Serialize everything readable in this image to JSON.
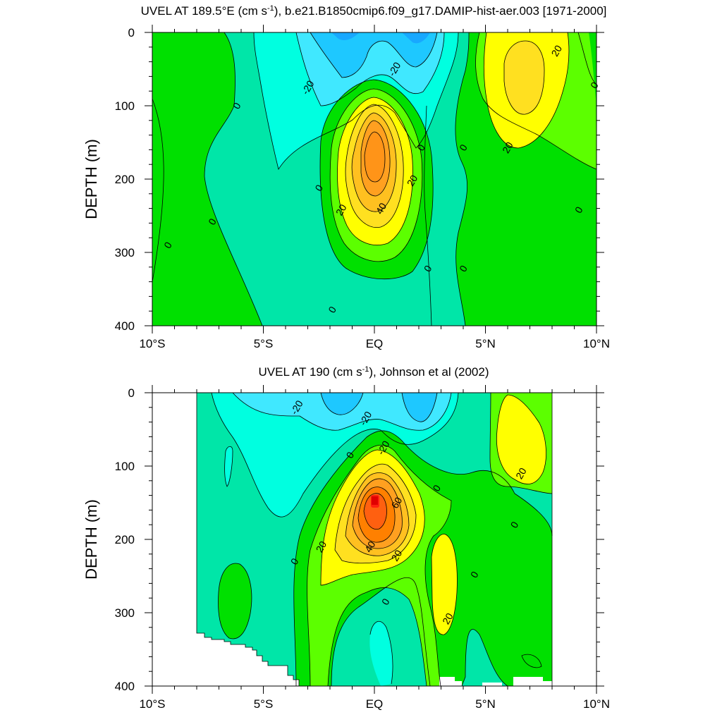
{
  "chart_data": [
    {
      "type": "contour",
      "title_text": "UVEL AT 189.5°E (cm s",
      "title_sup": "-1",
      "title_rest": "), b.e21.B1850cmip6.f09_g17.DAMIP-hist-aer.003 [1971-2000]",
      "ylabel": "DEPTH (m)",
      "x_ticks": [
        "10°S",
        "5°S",
        "EQ",
        "5°N",
        "10°N"
      ],
      "x_values": [
        -10,
        -5,
        0,
        5,
        10
      ],
      "y_ticks": [
        "0",
        "100",
        "200",
        "300",
        "400"
      ],
      "y_values": [
        0,
        100,
        200,
        300,
        400
      ],
      "xlim": [
        -10,
        10
      ],
      "ylim": [
        0,
        400
      ],
      "contour_interval": 10,
      "contour_labels": [
        {
          "text": "-20",
          "lat": -3.0,
          "depth": 75
        },
        {
          "text": "-20",
          "lat": 0.9,
          "depth": 50
        },
        {
          "text": "0",
          "lat": -6.2,
          "depth": 100
        },
        {
          "text": "0",
          "lat": -9.3,
          "depth": 290
        },
        {
          "text": "0",
          "lat": -7.3,
          "depth": 258
        },
        {
          "text": "0",
          "lat": -2.5,
          "depth": 212
        },
        {
          "text": "0",
          "lat": 2.1,
          "depth": 157
        },
        {
          "text": "0",
          "lat": 4.0,
          "depth": 157
        },
        {
          "text": "0",
          "lat": 2.4,
          "depth": 322
        },
        {
          "text": "0",
          "lat": 4.0,
          "depth": 322
        },
        {
          "text": "0",
          "lat": -1.9,
          "depth": 378
        },
        {
          "text": "0",
          "lat": 9.9,
          "depth": 72
        },
        {
          "text": "0",
          "lat": 9.2,
          "depth": 242
        },
        {
          "text": "20",
          "lat": 1.7,
          "depth": 202
        },
        {
          "text": "20",
          "lat": -1.5,
          "depth": 242
        },
        {
          "text": "20",
          "lat": 6.0,
          "depth": 157
        },
        {
          "text": "20",
          "lat": 8.2,
          "depth": 25
        },
        {
          "text": "40",
          "lat": 0.3,
          "depth": 240
        }
      ]
    },
    {
      "type": "contour",
      "title_text": "UVEL AT 190 (cm s",
      "title_sup": "-1",
      "title_rest": "), Johnson et al (2002)",
      "ylabel": "DEPTH (m)",
      "x_ticks": [
        "10°S",
        "5°S",
        "EQ",
        "5°N",
        "10°N"
      ],
      "x_values": [
        -10,
        -5,
        0,
        5,
        10
      ],
      "y_ticks": [
        "0",
        "100",
        "200",
        "300",
        "400"
      ],
      "y_values": [
        0,
        100,
        200,
        300,
        400
      ],
      "xlim": [
        -10,
        10
      ],
      "ylim": [
        0,
        400
      ],
      "contour_interval": 10,
      "data_lat_range": [
        -8,
        8
      ],
      "contour_labels": [
        {
          "text": "-20",
          "lat": -3.5,
          "depth": 20
        },
        {
          "text": "-20",
          "lat": -0.4,
          "depth": 35
        },
        {
          "text": "-20",
          "lat": 0.4,
          "depth": 75
        },
        {
          "text": "0",
          "lat": -1.1,
          "depth": 85
        },
        {
          "text": "0",
          "lat": 2.8,
          "depth": 130
        },
        {
          "text": "0",
          "lat": 6.3,
          "depth": 180
        },
        {
          "text": "0",
          "lat": -3.6,
          "depth": 230
        },
        {
          "text": "0",
          "lat": 4.5,
          "depth": 248
        },
        {
          "text": "0",
          "lat": 0.5,
          "depth": 285
        },
        {
          "text": "20",
          "lat": -2.4,
          "depth": 210
        },
        {
          "text": "20",
          "lat": 1.0,
          "depth": 222
        },
        {
          "text": "20",
          "lat": 3.3,
          "depth": 308
        },
        {
          "text": "20",
          "lat": 6.6,
          "depth": 110
        },
        {
          "text": "40",
          "lat": -0.2,
          "depth": 210
        },
        {
          "text": "60",
          "lat": 1.0,
          "depth": 150
        }
      ]
    }
  ]
}
